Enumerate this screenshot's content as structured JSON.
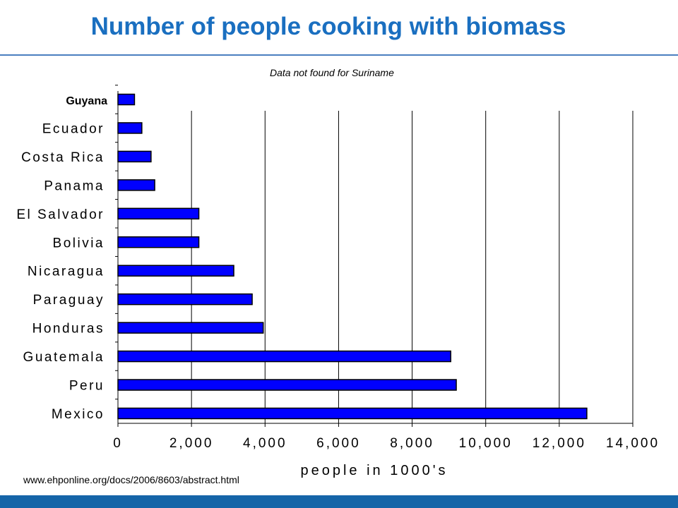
{
  "slide": {
    "title": "Number of people cooking with biomass",
    "note": "Data not found for Suriname",
    "source": "www.ehponline.org/docs/2006/8603/abstract.html"
  },
  "colors": {
    "bar_fill": "#0000ff",
    "bar_stroke": "#000000",
    "title": "#1a6fc0",
    "footer": "#1565a8"
  },
  "chart_data": {
    "type": "bar",
    "orientation": "horizontal",
    "title": "",
    "xlabel": "people in 1000's",
    "ylabel": "",
    "xlim": [
      0,
      14000
    ],
    "xticks": [
      0,
      2000,
      4000,
      6000,
      8000,
      10000,
      12000,
      14000
    ],
    "xtick_labels": [
      "0",
      "2,000",
      "4,000",
      "6,000",
      "8,000",
      "10,000",
      "12,000",
      "14,000"
    ],
    "grid": "vertical",
    "legend": "none",
    "categories": [
      "Guyana",
      "Ecuador",
      "Costa Rica",
      "Panama",
      "El Salvador",
      "Bolivia",
      "Nicaragua",
      "Paraguay",
      "Honduras",
      "Guatemala",
      "Peru",
      "Mexico"
    ],
    "values": [
      450,
      650,
      900,
      1000,
      2200,
      2200,
      3150,
      3650,
      3950,
      9050,
      9200,
      12750
    ]
  }
}
